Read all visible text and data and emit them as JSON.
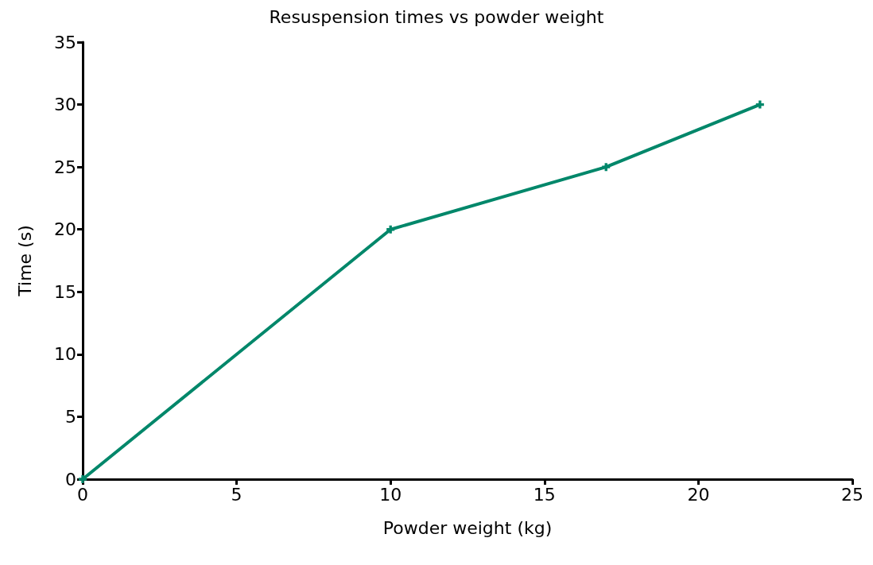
{
  "chart_data": {
    "type": "line",
    "title": "Resuspension times vs powder weight",
    "xlabel": "Powder weight (kg)",
    "ylabel": "Time (s)",
    "x": [
      0,
      10,
      17,
      22
    ],
    "series": [
      {
        "color": "#00876a",
        "values": [
          0,
          20,
          25,
          30
        ]
      }
    ],
    "xlim": [
      0,
      25
    ],
    "xticks": [
      0,
      5,
      10,
      15,
      20,
      25
    ],
    "ylim": [
      0,
      35
    ],
    "yticks": [
      0,
      5,
      10,
      15,
      20,
      25,
      30,
      35
    ],
    "grid": false,
    "marker": "cross",
    "line_style": "solid"
  }
}
